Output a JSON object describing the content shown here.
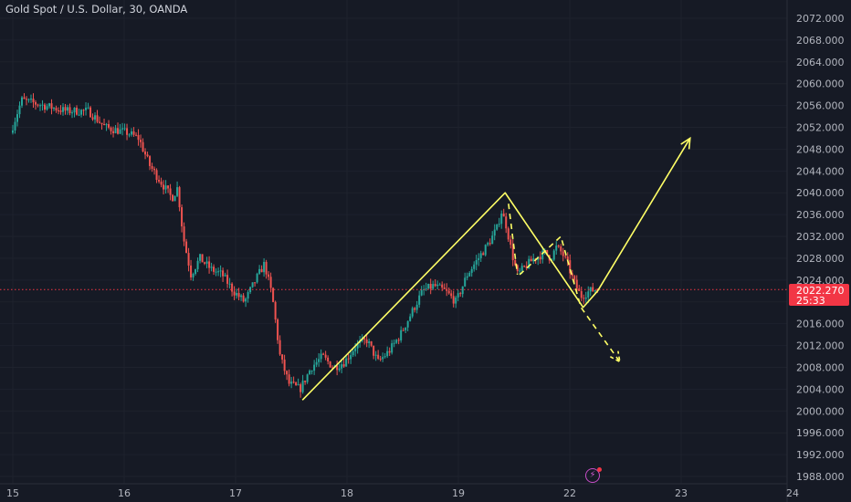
{
  "header": {
    "title": "Gold Spot / U.S. Dollar, 30, OANDA"
  },
  "price_badge": {
    "price": "2022.270",
    "countdown": "25:33"
  },
  "colors": {
    "background": "#161a25",
    "up": "#26a69a",
    "down": "#ef5350",
    "drawing": "#ffff66",
    "last_price": "#f23645",
    "grid": "#1e222d"
  },
  "icons": {
    "flash": "flash-icon"
  },
  "chart_data": {
    "type": "candlestick",
    "title": "Gold Spot / U.S. Dollar, 30, OANDA",
    "ylim": [
      1986,
      2074
    ],
    "y_ticks": [
      "2072.000",
      "2068.000",
      "2064.000",
      "2060.000",
      "2056.000",
      "2052.000",
      "2048.000",
      "2044.000",
      "2040.000",
      "2036.000",
      "2032.000",
      "2028.000",
      "2024.000",
      "2016.000",
      "2012.000",
      "2008.000",
      "2004.000",
      "2000.000",
      "1996.000",
      "1992.000",
      "1988.000"
    ],
    "x_ticks": [
      "15",
      "16",
      "17",
      "18",
      "19",
      "22",
      "23",
      "24"
    ],
    "last_price": 2022.27,
    "price_path": [
      {
        "t": 0.0,
        "p": 2051
      },
      {
        "t": 0.1,
        "p": 2057
      },
      {
        "t": 0.3,
        "p": 2056
      },
      {
        "t": 0.5,
        "p": 2055
      },
      {
        "t": 0.7,
        "p": 2055
      },
      {
        "t": 0.85,
        "p": 2052
      },
      {
        "t": 1.05,
        "p": 2051
      },
      {
        "t": 1.15,
        "p": 2050
      },
      {
        "t": 1.25,
        "p": 2045
      },
      {
        "t": 1.35,
        "p": 2042
      },
      {
        "t": 1.45,
        "p": 2039
      },
      {
        "t": 1.5,
        "p": 2041
      },
      {
        "t": 1.55,
        "p": 2032
      },
      {
        "t": 1.62,
        "p": 2025
      },
      {
        "t": 1.7,
        "p": 2028
      },
      {
        "t": 1.8,
        "p": 2026
      },
      {
        "t": 1.9,
        "p": 2025
      },
      {
        "t": 2.0,
        "p": 2022
      },
      {
        "t": 2.1,
        "p": 2020
      },
      {
        "t": 2.2,
        "p": 2024
      },
      {
        "t": 2.28,
        "p": 2027
      },
      {
        "t": 2.35,
        "p": 2021
      },
      {
        "t": 2.42,
        "p": 2010
      },
      {
        "t": 2.5,
        "p": 2005
      },
      {
        "t": 2.6,
        "p": 2004
      },
      {
        "t": 2.7,
        "p": 2008
      },
      {
        "t": 2.8,
        "p": 2010
      },
      {
        "t": 2.9,
        "p": 2008
      },
      {
        "t": 3.0,
        "p": 2009
      },
      {
        "t": 3.1,
        "p": 2012
      },
      {
        "t": 3.2,
        "p": 2013
      },
      {
        "t": 3.3,
        "p": 2009
      },
      {
        "t": 3.4,
        "p": 2011
      },
      {
        "t": 3.5,
        "p": 2014
      },
      {
        "t": 3.6,
        "p": 2018
      },
      {
        "t": 3.7,
        "p": 2022
      },
      {
        "t": 3.8,
        "p": 2023
      },
      {
        "t": 3.9,
        "p": 2022
      },
      {
        "t": 4.0,
        "p": 2020
      },
      {
        "t": 4.1,
        "p": 2025
      },
      {
        "t": 4.2,
        "p": 2028
      },
      {
        "t": 4.3,
        "p": 2031
      },
      {
        "t": 4.38,
        "p": 2034
      },
      {
        "t": 4.4,
        "p": 2037
      },
      {
        "t": 4.45,
        "p": 2034
      },
      {
        "t": 4.5,
        "p": 2029
      },
      {
        "t": 4.55,
        "p": 2025
      },
      {
        "t": 4.6,
        "p": 2026
      },
      {
        "t": 4.7,
        "p": 2028
      },
      {
        "t": 4.8,
        "p": 2029
      },
      {
        "t": 4.85,
        "p": 2028
      },
      {
        "t": 4.9,
        "p": 2030
      },
      {
        "t": 4.95,
        "p": 2029
      },
      {
        "t": 5.0,
        "p": 2027
      },
      {
        "t": 5.05,
        "p": 2024
      },
      {
        "t": 5.12,
        "p": 2021
      },
      {
        "t": 5.2,
        "p": 2022
      },
      {
        "t": 5.25,
        "p": 2022.27
      }
    ],
    "drawings": [
      {
        "kind": "solid",
        "points": [
          [
            2.6,
            2002
          ],
          [
            4.42,
            2040
          ],
          [
            5.12,
            2019
          ],
          [
            5.25,
            2022
          ],
          [
            6.08,
            2050
          ]
        ],
        "arrow": true
      },
      {
        "kind": "dashed",
        "points": [
          [
            4.45,
            2038
          ],
          [
            4.53,
            2025
          ]
        ],
        "arrow": false
      },
      {
        "kind": "dashed",
        "points": [
          [
            4.55,
            2025
          ],
          [
            4.92,
            2032
          ],
          [
            5.1,
            2019
          ],
          [
            5.45,
            2009
          ]
        ],
        "arrow": true
      }
    ]
  }
}
